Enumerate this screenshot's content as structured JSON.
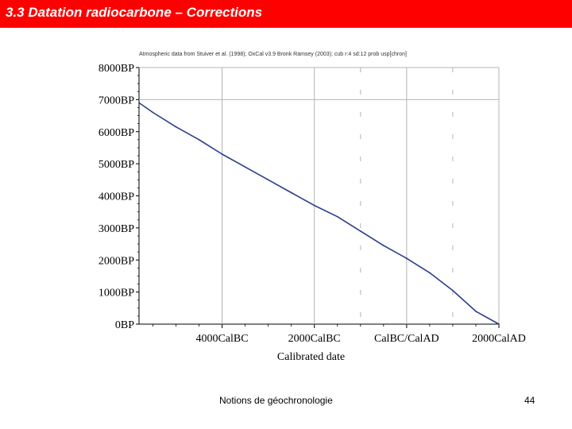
{
  "slide": {
    "title": "3.3 Datation radiocarbone – Corrections",
    "footer": "Notions de géochronologie",
    "page_number": "44"
  },
  "colors": {
    "title_bar": "#ff0000",
    "title_text": "#ffffff",
    "curve": "#2b3d8c",
    "grid": "#b4b4b4"
  },
  "chart_data": {
    "type": "line",
    "caption": "Atmospheric data from Stuiver et al. (1998); OxCal v3.9 Bronk Ramsey (2003); cub r:4 sd:12 prob usp[chron]",
    "xlabel": "Calibrated date",
    "ylabel": "",
    "x_tick_labels": [
      "4000CalBC",
      "2000CalBC",
      "CalBC/CalAD",
      "2000CalAD"
    ],
    "y_tick_labels": [
      "0BP",
      "1000BP",
      "2000BP",
      "3000BP",
      "4000BP",
      "5000BP",
      "6000BP",
      "7000BP",
      "8000BP"
    ],
    "xlim": [
      -5800,
      2000
    ],
    "ylim": [
      0,
      8000
    ],
    "grid": true,
    "series": [
      {
        "x": [
          -5800,
          -5500,
          -5000,
          -4500,
          -4000,
          -3500,
          -3000,
          -2500,
          -2000,
          -1500,
          -1000,
          -500,
          0,
          500,
          1000,
          1500,
          2000
        ],
        "y": [
          6900,
          6600,
          6150,
          5750,
          5300,
          4900,
          4500,
          4100,
          3700,
          3350,
          2900,
          2450,
          2050,
          1600,
          1050,
          400,
          0
        ]
      }
    ]
  }
}
